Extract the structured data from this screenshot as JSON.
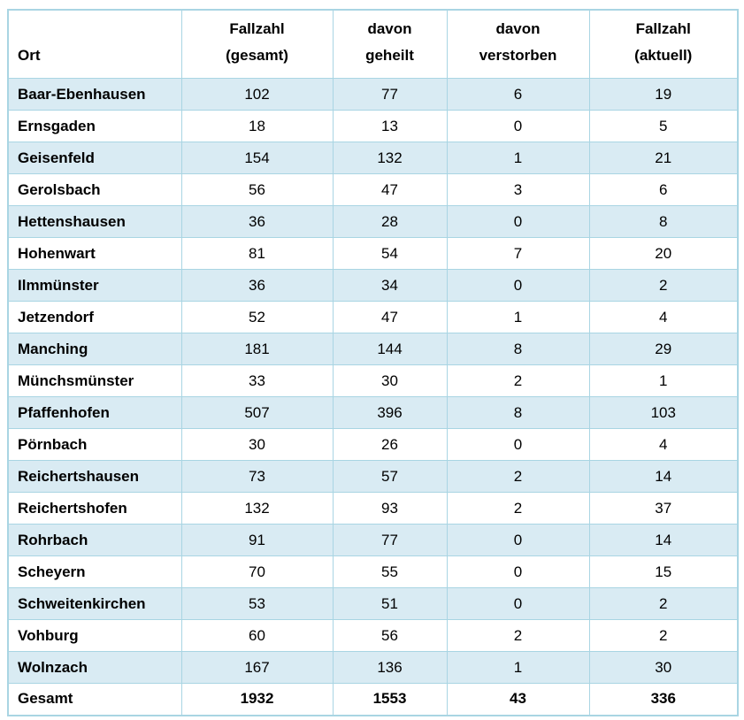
{
  "chart_data": {
    "type": "table",
    "title": "",
    "columns": [
      "Ort",
      "Fallzahl (gesamt)",
      "davon geheilt",
      "davon verstorben",
      "Fallzahl (aktuell)"
    ],
    "rows": [
      [
        "Baar-Ebenhausen",
        102,
        77,
        6,
        19
      ],
      [
        "Ernsgaden",
        18,
        13,
        0,
        5
      ],
      [
        "Geisenfeld",
        154,
        132,
        1,
        21
      ],
      [
        "Gerolsbach",
        56,
        47,
        3,
        6
      ],
      [
        "Hettenshausen",
        36,
        28,
        0,
        8
      ],
      [
        "Hohenwart",
        81,
        54,
        7,
        20
      ],
      [
        "Ilmmünster",
        36,
        34,
        0,
        2
      ],
      [
        "Jetzendorf",
        52,
        47,
        1,
        4
      ],
      [
        "Manching",
        181,
        144,
        8,
        29
      ],
      [
        "Münchsmünster",
        33,
        30,
        2,
        1
      ],
      [
        "Pfaffenhofen",
        507,
        396,
        8,
        103
      ],
      [
        "Pörnbach",
        30,
        26,
        0,
        4
      ],
      [
        "Reichertshausen",
        73,
        57,
        2,
        14
      ],
      [
        "Reichertshofen",
        132,
        93,
        2,
        37
      ],
      [
        "Rohrbach",
        91,
        77,
        0,
        14
      ],
      [
        "Scheyern",
        70,
        55,
        0,
        15
      ],
      [
        "Schweitenkirchen",
        53,
        51,
        0,
        2
      ],
      [
        "Vohburg",
        60,
        56,
        2,
        2
      ],
      [
        "Wolnzach",
        167,
        136,
        1,
        30
      ]
    ],
    "total_row": [
      "Gesamt",
      1932,
      1553,
      43,
      336
    ],
    "layout_hints": {
      "striped_rows": "odd rows light blue",
      "grid": "on",
      "value_alignment": "center",
      "ort_alignment": "left"
    }
  },
  "header": {
    "ort": "Ort",
    "cols": [
      {
        "line1": "Fallzahl",
        "line2": "(gesamt)"
      },
      {
        "line1": "davon",
        "line2": "geheilt"
      },
      {
        "line1": "davon",
        "line2": "verstorben"
      },
      {
        "line1": "Fallzahl",
        "line2": "(aktuell)"
      }
    ]
  },
  "colors": {
    "stripe": "#d9ebf3",
    "border": "#a9d5e3",
    "background": "#ffffff",
    "text": "#000000"
  }
}
